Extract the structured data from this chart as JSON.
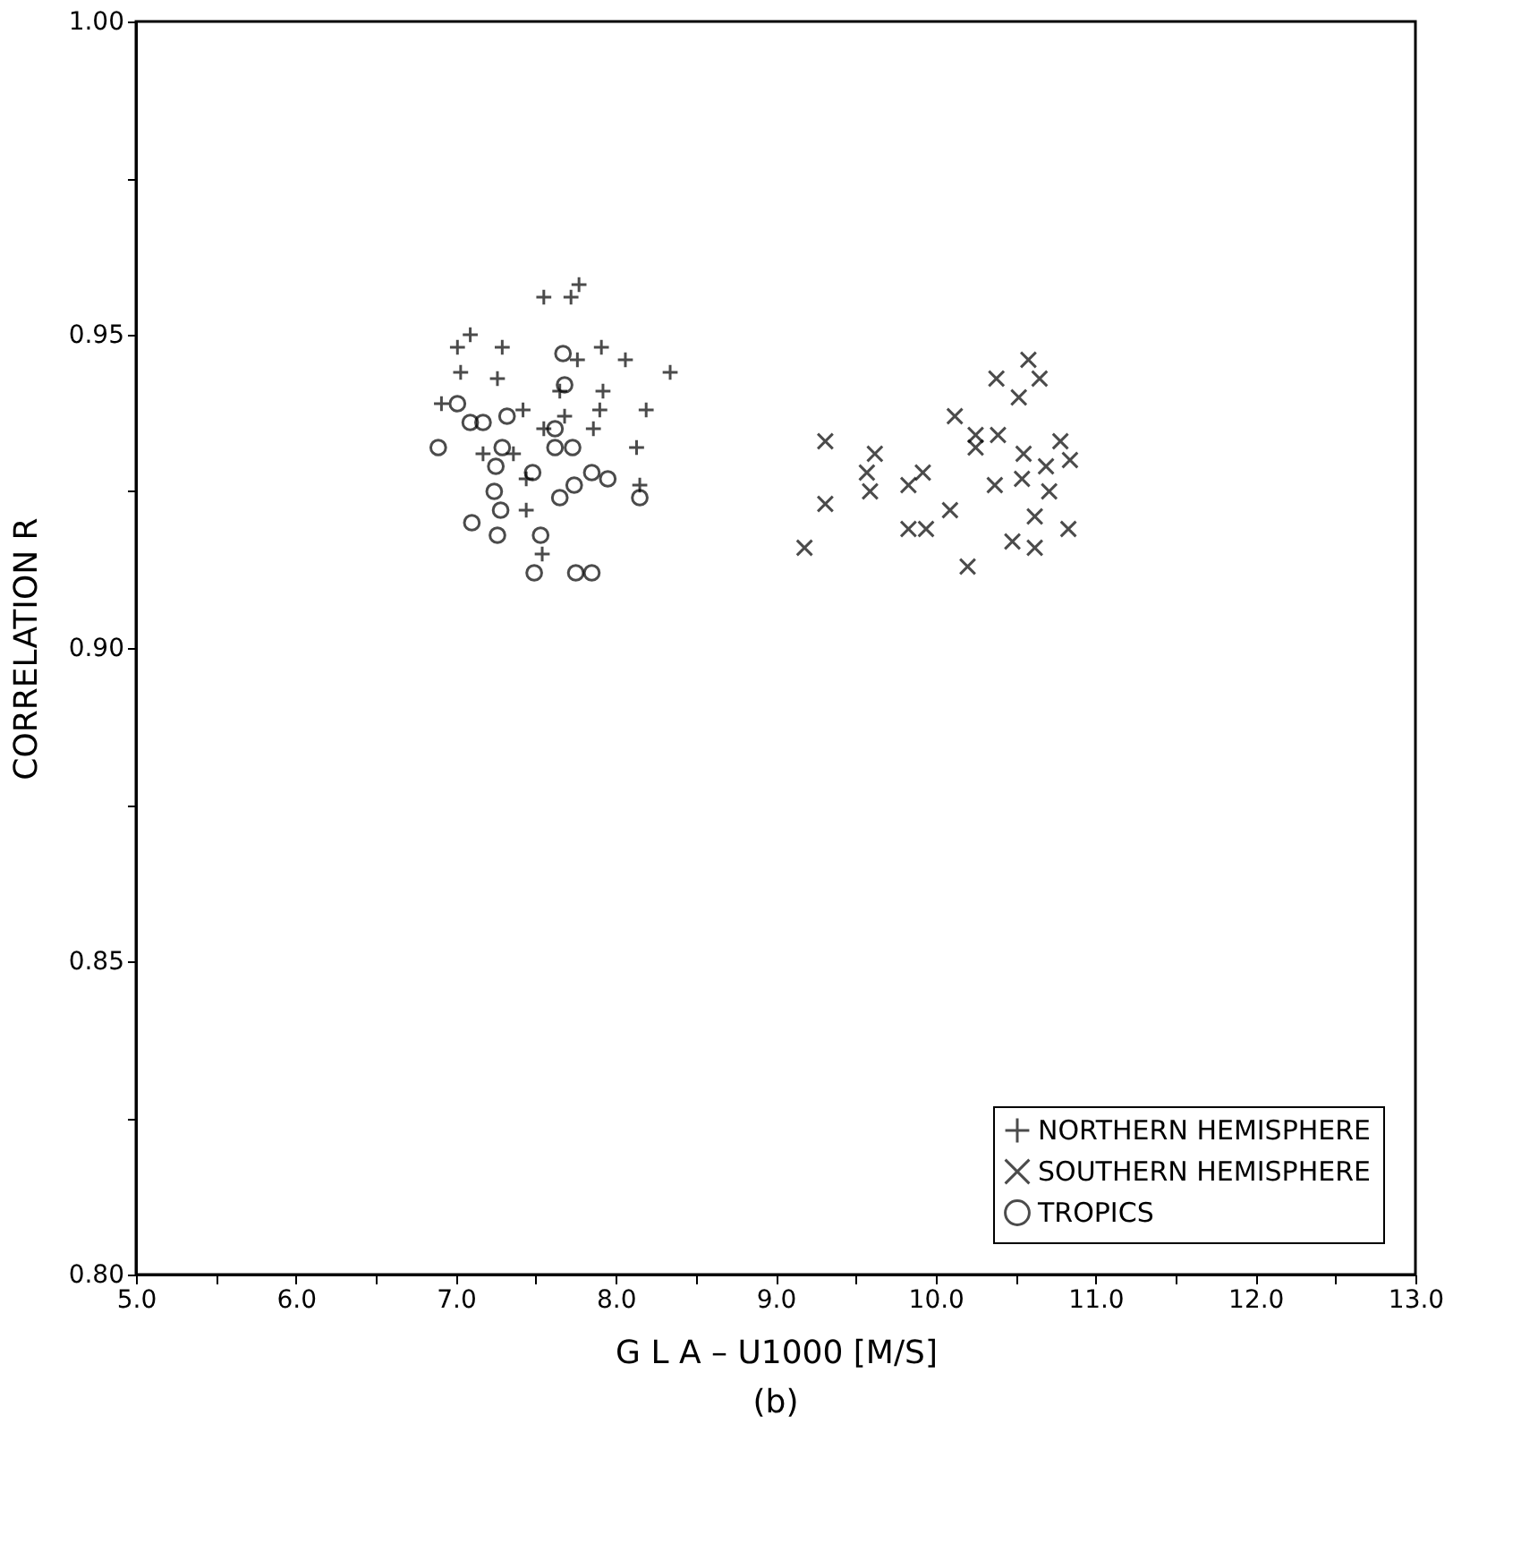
{
  "chart_data": {
    "type": "scatter",
    "xlabel": "G L A – U1000 [M/S]",
    "ylabel": "CORRELATION R",
    "annotations": [
      "(b)"
    ],
    "xlim": [
      5,
      13
    ],
    "ylim": [
      0.8,
      1.0
    ],
    "xticks": [
      {
        "value": 5,
        "label": "5.0"
      },
      {
        "value": 5.5,
        "label": null
      },
      {
        "value": 6,
        "label": "6.0"
      },
      {
        "value": 6.5,
        "label": null
      },
      {
        "value": 7,
        "label": "7.0"
      },
      {
        "value": 7.5,
        "label": null
      },
      {
        "value": 8,
        "label": "8.0"
      },
      {
        "value": 8.5,
        "label": null
      },
      {
        "value": 9,
        "label": "9.0"
      },
      {
        "value": 9.5,
        "label": null
      },
      {
        "value": 10,
        "label": "10.0"
      },
      {
        "value": 10.5,
        "label": null
      },
      {
        "value": 11,
        "label": "11.0"
      },
      {
        "value": 11.5,
        "label": null
      },
      {
        "value": 12,
        "label": "12.0"
      },
      {
        "value": 12.5,
        "label": null
      },
      {
        "value": 13,
        "label": "13.0"
      }
    ],
    "yticks": [
      {
        "value": 0.8,
        "label": "0.80"
      },
      {
        "value": 0.825,
        "label": null
      },
      {
        "value": 0.85,
        "label": "0.85"
      },
      {
        "value": 0.875,
        "label": null
      },
      {
        "value": 0.9,
        "label": "0.90"
      },
      {
        "value": 0.925,
        "label": null
      },
      {
        "value": 0.95,
        "label": "0.95"
      },
      {
        "value": 0.975,
        "label": null
      },
      {
        "value": 1.0,
        "label": "1.00"
      }
    ],
    "grid": false,
    "legend": "bottom right",
    "series": [
      {
        "name": "NORTHERN HEMISPHERE",
        "color": "#000000",
        "marker": "cross",
        "x": [
          7.55,
          7.72,
          7.77,
          7.09,
          7.01,
          7.29,
          7.03,
          7.26,
          7.76,
          7.91,
          8.06,
          8.34,
          7.92,
          7.65,
          7.9,
          8.19,
          6.91,
          7.42,
          7.55,
          7.68,
          7.86,
          8.13,
          7.17,
          7.44,
          8.15,
          7.44,
          7.54,
          7.36
        ],
        "values": [
          0.956,
          0.956,
          0.958,
          0.95,
          0.948,
          0.948,
          0.944,
          0.943,
          0.946,
          0.948,
          0.946,
          0.944,
          0.941,
          0.941,
          0.938,
          0.938,
          0.939,
          0.938,
          0.935,
          0.937,
          0.935,
          0.932,
          0.931,
          0.927,
          0.926,
          0.922,
          0.915,
          0.931
        ]
      },
      {
        "name": "SOUTHERN HEMISPHERE",
        "color": "#000000",
        "marker": "x",
        "x": [
          9.31,
          9.31,
          9.18,
          9.62,
          9.57,
          9.59,
          9.83,
          9.92,
          9.83,
          9.94,
          10.09,
          10.12,
          10.25,
          10.25,
          10.39,
          10.38,
          10.58,
          10.52,
          10.65,
          10.55,
          10.54,
          10.37,
          10.2,
          10.48,
          10.62,
          10.62,
          10.71,
          10.78,
          10.84,
          10.83,
          10.69
        ],
        "values": [
          0.933,
          0.923,
          0.916,
          0.931,
          0.928,
          0.925,
          0.926,
          0.928,
          0.919,
          0.919,
          0.922,
          0.937,
          0.934,
          0.932,
          0.934,
          0.943,
          0.946,
          0.94,
          0.943,
          0.931,
          0.927,
          0.926,
          0.913,
          0.917,
          0.916,
          0.921,
          0.925,
          0.933,
          0.93,
          0.919,
          0.929
        ]
      },
      {
        "name": "TROPICS",
        "color": "#000000",
        "marker": "circle",
        "x": [
          6.89,
          7.01,
          7.09,
          7.17,
          7.32,
          7.29,
          7.25,
          7.24,
          7.28,
          7.1,
          7.26,
          7.48,
          7.62,
          7.73,
          7.67,
          7.68,
          7.65,
          7.74,
          7.85,
          7.95,
          8.15,
          7.53,
          7.49,
          7.75,
          7.85,
          7.62
        ],
        "values": [
          0.932,
          0.939,
          0.936,
          0.936,
          0.937,
          0.932,
          0.929,
          0.925,
          0.922,
          0.92,
          0.918,
          0.928,
          0.932,
          0.932,
          0.947,
          0.942,
          0.924,
          0.926,
          0.928,
          0.927,
          0.924,
          0.918,
          0.912,
          0.912,
          0.912,
          0.935
        ]
      }
    ]
  }
}
